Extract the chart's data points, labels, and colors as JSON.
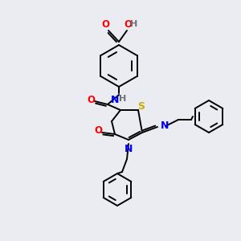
{
  "bg_color": "#eaecf2",
  "bond_color": "#000000",
  "atom_colors": {
    "O": "#ff0000",
    "N": "#0000ff",
    "S": "#ccaa00",
    "H": "#707070",
    "C": "#000000"
  },
  "fig_width": 3.0,
  "fig_height": 3.0,
  "dpi": 100
}
